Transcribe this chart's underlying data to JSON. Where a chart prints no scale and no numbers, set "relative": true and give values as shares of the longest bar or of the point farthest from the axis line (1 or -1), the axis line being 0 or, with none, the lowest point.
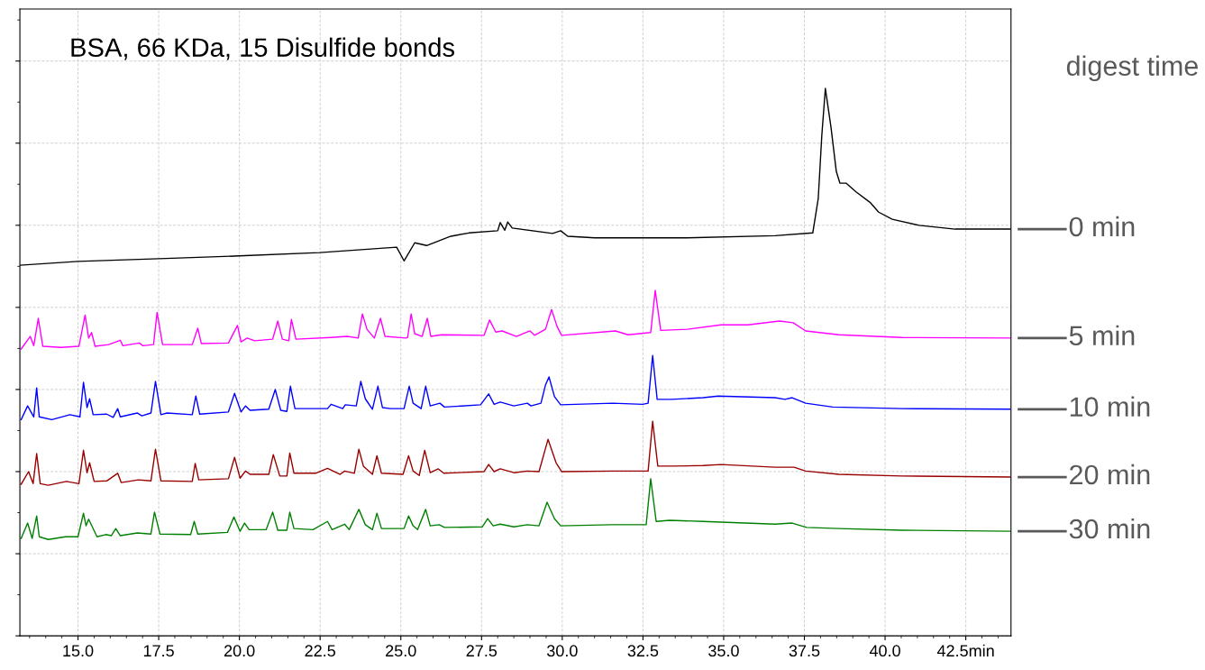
{
  "chart_data": {
    "type": "line",
    "title": "BSA, 66 KDa, 15 Disulfide bonds",
    "legend_title": "digest time",
    "relative": true,
    "grid": true,
    "legend": false,
    "tick_labels": "x",
    "line_style": "solid",
    "marker": "none",
    "xlim": [
      13.2,
      43.9
    ],
    "xticks": [
      {
        "value": 15,
        "label": "15.0"
      },
      {
        "value": 17.5,
        "label": "17.5"
      },
      {
        "value": 20,
        "label": "20.0"
      },
      {
        "value": 22.5,
        "label": "22.5"
      },
      {
        "value": 25,
        "label": "25.0"
      },
      {
        "value": 27.5,
        "label": "27.5"
      },
      {
        "value": 30,
        "label": "30.0"
      },
      {
        "value": 32.5,
        "label": "32.5"
      },
      {
        "value": 35,
        "label": "35.0"
      },
      {
        "value": 37.5,
        "label": "37.5"
      },
      {
        "value": 40,
        "label": "40.0"
      },
      {
        "value": 42.5,
        "label": "42.5min"
      }
    ],
    "series": [
      {
        "name": "0 min",
        "color": "#000000",
        "x": [
          13.21,
          15.0,
          17.51,
          19.99,
          22.48,
          24.87,
          25.1,
          25.43,
          25.8,
          26.55,
          27.11,
          28.0,
          28.08,
          28.22,
          28.31,
          28.45,
          29.7,
          29.95,
          30.17,
          31.01,
          33.8,
          36.59,
          37.76,
          37.93,
          38.04,
          38.15,
          38.32,
          38.49,
          38.6,
          38.79,
          39.1,
          39.55,
          39.8,
          40.22,
          41.05,
          42.17,
          43.9
        ],
        "values": [
          0.677,
          0.684,
          0.689,
          0.694,
          0.7,
          0.71,
          0.685,
          0.718,
          0.713,
          0.73,
          0.736,
          0.74,
          0.755,
          0.741,
          0.756,
          0.745,
          0.735,
          0.74,
          0.73,
          0.727,
          0.727,
          0.731,
          0.736,
          0.799,
          0.914,
          1.0,
          0.931,
          0.848,
          0.827,
          0.827,
          0.811,
          0.791,
          0.774,
          0.761,
          0.75,
          0.743,
          0.743
        ]
      },
      {
        "name": "5 min",
        "color": "#ff00ff",
        "x": [
          13.24,
          13.52,
          13.63,
          13.77,
          13.91,
          14.47,
          15.03,
          15.22,
          15.33,
          15.42,
          15.53,
          15.95,
          16.31,
          16.39,
          16.9,
          17.01,
          17.34,
          17.45,
          17.62,
          18.54,
          18.71,
          18.82,
          19.66,
          19.94,
          20.05,
          20.24,
          20.47,
          21.03,
          21.19,
          21.33,
          21.53,
          21.61,
          21.75,
          22.84,
          23.34,
          23.68,
          23.81,
          23.95,
          24.18,
          24.37,
          24.51,
          25.15,
          25.21,
          25.32,
          25.43,
          25.66,
          25.82,
          25.93,
          26.27,
          27.58,
          27.75,
          27.94,
          28.14,
          28.58,
          29.0,
          29.14,
          29.48,
          29.67,
          29.84,
          29.98,
          31.65,
          32.04,
          32.74,
          32.88,
          33.05,
          33.88,
          34.92,
          35.75,
          36.73,
          37.15,
          37.54,
          38.57,
          40.52,
          43.87
        ],
        "values": [
          0.524,
          0.547,
          0.53,
          0.58,
          0.529,
          0.527,
          0.529,
          0.586,
          0.544,
          0.554,
          0.529,
          0.532,
          0.54,
          0.53,
          0.535,
          0.53,
          0.532,
          0.591,
          0.532,
          0.532,
          0.562,
          0.534,
          0.535,
          0.567,
          0.537,
          0.544,
          0.539,
          0.542,
          0.575,
          0.542,
          0.539,
          0.578,
          0.542,
          0.545,
          0.547,
          0.544,
          0.588,
          0.56,
          0.544,
          0.58,
          0.547,
          0.544,
          0.545,
          0.588,
          0.552,
          0.547,
          0.58,
          0.547,
          0.55,
          0.549,
          0.577,
          0.555,
          0.557,
          0.547,
          0.557,
          0.549,
          0.56,
          0.596,
          0.565,
          0.549,
          0.557,
          0.55,
          0.554,
          0.631,
          0.558,
          0.56,
          0.568,
          0.568,
          0.575,
          0.572,
          0.557,
          0.55,
          0.545,
          0.544
        ]
      },
      {
        "name": "10 min",
        "color": "#0000ff",
        "x": [
          13.24,
          13.44,
          13.63,
          13.72,
          13.8,
          14.19,
          14.75,
          15.06,
          15.17,
          15.28,
          15.36,
          15.47,
          15.89,
          16.09,
          16.23,
          16.31,
          16.84,
          16.98,
          17.26,
          17.4,
          17.57,
          17.76,
          18.54,
          18.65,
          18.77,
          19.66,
          19.85,
          20.05,
          20.19,
          20.33,
          20.91,
          21.11,
          21.28,
          21.47,
          21.58,
          21.72,
          22.73,
          22.84,
          23.2,
          23.28,
          23.62,
          23.76,
          23.9,
          24.12,
          24.29,
          24.43,
          24.68,
          25.1,
          25.26,
          25.38,
          25.63,
          25.77,
          25.91,
          26.21,
          26.35,
          27.47,
          27.72,
          27.89,
          28.08,
          28.5,
          28.92,
          29.03,
          29.34,
          29.48,
          29.59,
          29.76,
          29.95,
          31.57,
          32.49,
          32.66,
          32.8,
          32.94,
          33.38,
          34.36,
          34.83,
          36.59,
          36.9,
          37.12,
          37.54,
          38.38,
          40.52,
          43.87
        ],
        "values": [
          0.395,
          0.42,
          0.4,
          0.453,
          0.4,
          0.395,
          0.404,
          0.4,
          0.463,
          0.417,
          0.433,
          0.404,
          0.405,
          0.399,
          0.415,
          0.4,
          0.407,
          0.402,
          0.407,
          0.465,
          0.404,
          0.407,
          0.404,
          0.438,
          0.405,
          0.409,
          0.443,
          0.409,
          0.42,
          0.412,
          0.414,
          0.45,
          0.412,
          0.41,
          0.456,
          0.415,
          0.415,
          0.423,
          0.415,
          0.422,
          0.42,
          0.465,
          0.433,
          0.414,
          0.456,
          0.417,
          0.415,
          0.415,
          0.456,
          0.425,
          0.415,
          0.456,
          0.42,
          0.425,
          0.418,
          0.422,
          0.442,
          0.423,
          0.427,
          0.42,
          0.425,
          0.42,
          0.425,
          0.458,
          0.473,
          0.437,
          0.422,
          0.425,
          0.423,
          0.425,
          0.512,
          0.432,
          0.432,
          0.435,
          0.438,
          0.435,
          0.432,
          0.435,
          0.425,
          0.418,
          0.415,
          0.414
        ]
      },
      {
        "name": "20 min",
        "color": "#990000",
        "x": [
          13.24,
          13.47,
          13.61,
          13.72,
          13.83,
          14.08,
          14.64,
          15.03,
          15.17,
          15.28,
          15.36,
          15.5,
          15.89,
          16.23,
          16.34,
          16.87,
          17.26,
          17.4,
          17.57,
          18.54,
          18.63,
          18.74,
          19.66,
          19.85,
          20.02,
          20.19,
          20.33,
          20.91,
          21.05,
          21.25,
          21.47,
          21.56,
          21.69,
          22.36,
          22.73,
          23.12,
          23.26,
          23.56,
          23.7,
          23.84,
          24.12,
          24.26,
          24.4,
          25.07,
          25.24,
          25.38,
          25.57,
          25.74,
          25.91,
          26.16,
          26.33,
          27.58,
          27.72,
          27.89,
          28.08,
          28.5,
          28.92,
          29.28,
          29.56,
          29.81,
          29.98,
          31.57,
          32.66,
          32.8,
          32.96,
          33.38,
          34.36,
          34.92,
          36.59,
          37.18,
          37.54,
          38.57,
          40.52,
          43.87
        ],
        "values": [
          0.277,
          0.3,
          0.278,
          0.333,
          0.278,
          0.275,
          0.282,
          0.278,
          0.339,
          0.298,
          0.316,
          0.282,
          0.283,
          0.297,
          0.28,
          0.285,
          0.283,
          0.341,
          0.283,
          0.282,
          0.315,
          0.285,
          0.287,
          0.326,
          0.288,
          0.301,
          0.295,
          0.295,
          0.331,
          0.292,
          0.292,
          0.334,
          0.297,
          0.297,
          0.306,
          0.295,
          0.301,
          0.297,
          0.341,
          0.31,
          0.295,
          0.329,
          0.297,
          0.295,
          0.329,
          0.301,
          0.293,
          0.339,
          0.298,
          0.305,
          0.297,
          0.3,
          0.313,
          0.3,
          0.305,
          0.298,
          0.301,
          0.3,
          0.359,
          0.316,
          0.3,
          0.301,
          0.301,
          0.392,
          0.31,
          0.31,
          0.311,
          0.313,
          0.308,
          0.308,
          0.301,
          0.295,
          0.292,
          0.29
        ]
      },
      {
        "name": "30 min",
        "color": "#008000",
        "x": [
          13.24,
          13.44,
          13.58,
          13.72,
          13.8,
          14.08,
          14.61,
          15.0,
          15.17,
          15.25,
          15.33,
          15.59,
          15.86,
          16.03,
          16.17,
          16.31,
          16.84,
          17.26,
          17.37,
          17.54,
          18.49,
          18.6,
          18.71,
          19.63,
          19.83,
          20.02,
          20.16,
          20.3,
          20.83,
          21.03,
          21.19,
          21.47,
          21.56,
          21.69,
          22.28,
          22.73,
          22.87,
          23.26,
          23.4,
          23.7,
          23.9,
          24.12,
          24.26,
          24.4,
          25.1,
          25.24,
          25.38,
          25.52,
          25.77,
          25.91,
          26.19,
          26.35,
          27.52,
          27.69,
          27.86,
          28.08,
          28.5,
          28.92,
          29.28,
          29.53,
          29.76,
          29.95,
          31.51,
          32.6,
          32.74,
          32.91,
          33.33,
          34.36,
          36.59,
          37.12,
          37.57,
          38.57,
          40.52,
          43.87
        ],
        "values": [
          0.178,
          0.206,
          0.178,
          0.219,
          0.181,
          0.176,
          0.181,
          0.181,
          0.224,
          0.201,
          0.213,
          0.181,
          0.185,
          0.183,
          0.196,
          0.183,
          0.188,
          0.186,
          0.226,
          0.186,
          0.185,
          0.209,
          0.186,
          0.189,
          0.217,
          0.191,
          0.206,
          0.194,
          0.194,
          0.226,
          0.193,
          0.193,
          0.226,
          0.196,
          0.194,
          0.209,
          0.194,
          0.204,
          0.194,
          0.231,
          0.203,
          0.194,
          0.224,
          0.196,
          0.196,
          0.219,
          0.201,
          0.194,
          0.231,
          0.201,
          0.203,
          0.198,
          0.199,
          0.214,
          0.201,
          0.204,
          0.199,
          0.203,
          0.201,
          0.244,
          0.214,
          0.201,
          0.203,
          0.203,
          0.287,
          0.209,
          0.211,
          0.209,
          0.204,
          0.206,
          0.198,
          0.196,
          0.193,
          0.191
        ]
      }
    ]
  }
}
